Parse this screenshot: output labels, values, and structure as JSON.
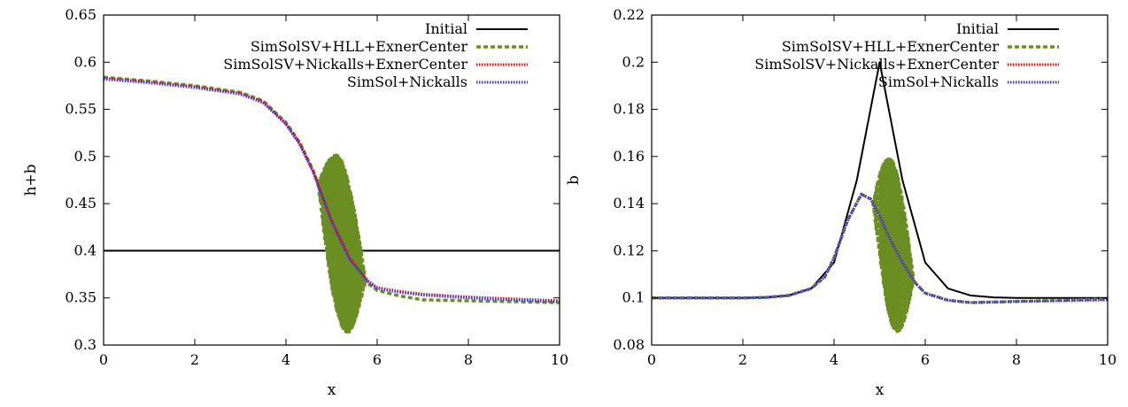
{
  "chart_data": [
    {
      "type": "line",
      "title": "",
      "xlabel": "x",
      "ylabel": "h+b",
      "xlim": [
        0,
        10
      ],
      "ylim": [
        0.3,
        0.65
      ],
      "x_ticks": [
        "0",
        "2",
        "4",
        "6",
        "8",
        "10"
      ],
      "y_ticks": [
        "0.3",
        "0.35",
        "0.4",
        "0.45",
        "0.5",
        "0.55",
        "0.6",
        "0.65"
      ],
      "legend_position": "top-right",
      "legend": [
        "Initial",
        "SimSolSV+HLL+ExnerCenter",
        "SimSolSV+Nickalls+ExnerCenter",
        "SimSol+Nickalls"
      ],
      "series": [
        {
          "name": "Initial",
          "color": "#000000",
          "style": "solid",
          "x": [
            0,
            10
          ],
          "y": [
            0.4,
            0.4
          ]
        },
        {
          "name": "SimSolSV+HLL+ExnerCenter",
          "color": "#6b8e23",
          "style": "dashed",
          "oscillation": [
            4.7,
            5.75
          ],
          "x": [
            0,
            1,
            2,
            3,
            3.5,
            4,
            4.3,
            4.6,
            5.0,
            5.4,
            5.8,
            6.0,
            6.5,
            7.0,
            8.0,
            9.0,
            10.0
          ],
          "y": [
            0.584,
            0.58,
            0.575,
            0.568,
            0.559,
            0.536,
            0.515,
            0.485,
            0.43,
            0.39,
            0.365,
            0.358,
            0.352,
            0.348,
            0.347,
            0.346,
            0.345
          ]
        },
        {
          "name": "SimSolSV+Nickalls+ExnerCenter",
          "color": "#ff0000",
          "style": "dotted",
          "x": [
            0,
            1,
            2,
            3,
            3.5,
            4,
            4.3,
            4.6,
            5.0,
            5.4,
            5.8,
            6.0,
            6.5,
            7.0,
            8.0,
            9.0,
            10.0
          ],
          "y": [
            0.583,
            0.579,
            0.574,
            0.567,
            0.558,
            0.535,
            0.514,
            0.484,
            0.432,
            0.392,
            0.368,
            0.361,
            0.357,
            0.354,
            0.351,
            0.349,
            0.347
          ]
        },
        {
          "name": "SimSol+Nickalls",
          "color": "#3333ff",
          "style": "dotted",
          "x": [
            0,
            1,
            2,
            3,
            3.5,
            4,
            4.3,
            4.6,
            5.0,
            5.4,
            5.8,
            6.0,
            6.5,
            7.0,
            8.0,
            9.0,
            10.0
          ],
          "y": [
            0.582,
            0.578,
            0.573,
            0.566,
            0.557,
            0.534,
            0.513,
            0.483,
            0.431,
            0.391,
            0.367,
            0.36,
            0.356,
            0.353,
            0.35,
            0.348,
            0.346
          ]
        }
      ]
    },
    {
      "type": "line",
      "title": "",
      "xlabel": "x",
      "ylabel": "b",
      "xlim": [
        0,
        10
      ],
      "ylim": [
        0.08,
        0.22
      ],
      "x_ticks": [
        "0",
        "2",
        "4",
        "6",
        "8",
        "10"
      ],
      "y_ticks": [
        "0.08",
        "0.1",
        "0.12",
        "0.14",
        "0.16",
        "0.18",
        "0.2",
        "0.22"
      ],
      "legend_position": "top-right",
      "legend": [
        "Initial",
        "SimSolSV+HLL+ExnerCenter",
        "SimSolSV+Nickalls+ExnerCenter",
        "SimSol+Nickalls"
      ],
      "series": [
        {
          "name": "Initial",
          "color": "#000000",
          "style": "solid",
          "x": [
            0,
            2,
            2.5,
            3,
            3.5,
            4,
            4.5,
            5,
            5.5,
            6,
            6.5,
            7,
            7.5,
            8,
            10
          ],
          "y": [
            0.1,
            0.1,
            0.1002,
            0.101,
            0.104,
            0.115,
            0.15,
            0.2,
            0.15,
            0.115,
            0.104,
            0.101,
            0.1002,
            0.1,
            0.1
          ]
        },
        {
          "name": "SimSolSV+HLL+ExnerCenter",
          "color": "#6b8e23",
          "style": "dashed",
          "oscillation": [
            4.85,
            5.75
          ],
          "x": [
            0,
            2,
            2.5,
            3,
            3.5,
            3.8,
            4.0,
            4.3,
            4.6,
            4.8,
            5.0,
            5.2,
            5.5,
            5.8,
            6.0,
            6.5,
            7.0,
            8.0,
            9.0,
            10.0
          ],
          "y": [
            0.1,
            0.1,
            0.1002,
            0.101,
            0.104,
            0.109,
            0.117,
            0.133,
            0.144,
            0.142,
            0.135,
            0.126,
            0.115,
            0.106,
            0.102,
            0.099,
            0.098,
            0.0985,
            0.099,
            0.0995
          ]
        },
        {
          "name": "SimSolSV+Nickalls+ExnerCenter",
          "color": "#ff0000",
          "style": "dotted",
          "x": [
            0,
            2,
            2.5,
            3,
            3.5,
            3.8,
            4.0,
            4.3,
            4.6,
            4.8,
            5.0,
            5.2,
            5.5,
            5.8,
            6.0,
            6.5,
            7.0,
            8.0,
            9.0,
            10.0
          ],
          "y": [
            0.1,
            0.1,
            0.1002,
            0.101,
            0.104,
            0.109,
            0.117,
            0.133,
            0.144,
            0.142,
            0.135,
            0.126,
            0.115,
            0.106,
            0.102,
            0.099,
            0.098,
            0.0985,
            0.0988,
            0.0992
          ]
        },
        {
          "name": "SimSol+Nickalls",
          "color": "#3333ff",
          "style": "dotted",
          "x": [
            0,
            2,
            2.5,
            3,
            3.5,
            3.8,
            4.0,
            4.3,
            4.6,
            4.8,
            5.0,
            5.2,
            5.5,
            5.8,
            6.0,
            6.5,
            7.0,
            8.0,
            9.0,
            10.0
          ],
          "y": [
            0.1,
            0.1,
            0.1002,
            0.101,
            0.104,
            0.109,
            0.117,
            0.133,
            0.144,
            0.142,
            0.135,
            0.126,
            0.115,
            0.106,
            0.102,
            0.099,
            0.098,
            0.0985,
            0.0988,
            0.0992
          ]
        }
      ]
    }
  ]
}
